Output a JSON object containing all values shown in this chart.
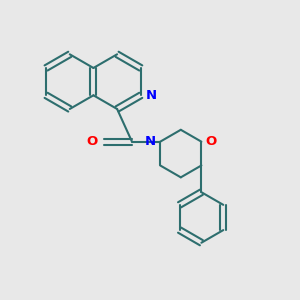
{
  "bg_color": "#e8e8e8",
  "bond_color": "#2d6e6e",
  "bond_width": 1.5,
  "n_color": "#0000ff",
  "o_color": "#ff0000",
  "font_size": 9.5,
  "fig_size": [
    3.0,
    3.0
  ],
  "dpi": 100,
  "xlim": [
    0,
    10
  ],
  "ylim": [
    0,
    10
  ]
}
